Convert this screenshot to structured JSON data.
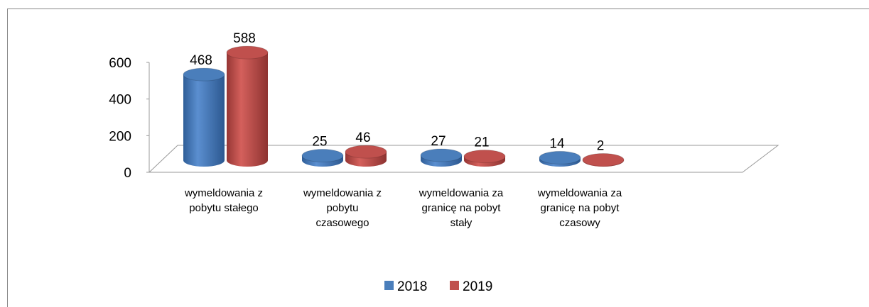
{
  "chart_data": {
    "type": "bar3d",
    "categories": [
      "wymeldowania z pobytu stałego",
      "wymeldowania z pobytu czasowego",
      "wymeldowania za granicę na pobyt stały",
      "wymeldowania za granicę na pobyt czasowy"
    ],
    "series": [
      {
        "name": "2018",
        "color": "#4a7ebb",
        "values": [
          468,
          25,
          27,
          14
        ]
      },
      {
        "name": "2019",
        "color": "#c0504d",
        "values": [
          588,
          46,
          21,
          2
        ]
      }
    ],
    "ylim": [
      0,
      600
    ],
    "yticks": [
      0,
      200,
      400,
      600
    ],
    "legend": "bottom"
  }
}
